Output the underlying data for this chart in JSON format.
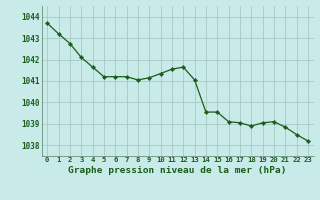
{
  "x": [
    0,
    1,
    2,
    3,
    4,
    5,
    6,
    7,
    8,
    9,
    10,
    11,
    12,
    13,
    14,
    15,
    16,
    17,
    18,
    19,
    20,
    21,
    22,
    23
  ],
  "y": [
    1043.7,
    1043.2,
    1042.75,
    1042.1,
    1041.65,
    1041.2,
    1041.2,
    1041.2,
    1041.05,
    1041.15,
    1041.35,
    1041.55,
    1041.65,
    1041.05,
    1039.55,
    1039.55,
    1039.1,
    1039.05,
    1038.9,
    1039.05,
    1039.1,
    1038.85,
    1038.5,
    1038.2
  ],
  "line_color": "#1a5e1a",
  "marker_color": "#1a5e1a",
  "bg_color": "#c8eae8",
  "grid_color": "#a8c8c4",
  "xlabel": "Graphe pression niveau de la mer (hPa)",
  "xlabel_color": "#1a5e1a",
  "tick_color": "#1a5e1a",
  "ylim_min": 1037.5,
  "ylim_max": 1044.5,
  "yticks": [
    1038,
    1039,
    1040,
    1041,
    1042,
    1043,
    1044
  ],
  "xtick_labels": [
    "0",
    "1",
    "2",
    "3",
    "4",
    "5",
    "6",
    "7",
    "8",
    "9",
    "10",
    "11",
    "12",
    "13",
    "14",
    "15",
    "16",
    "17",
    "18",
    "19",
    "20",
    "21",
    "22",
    "23"
  ]
}
